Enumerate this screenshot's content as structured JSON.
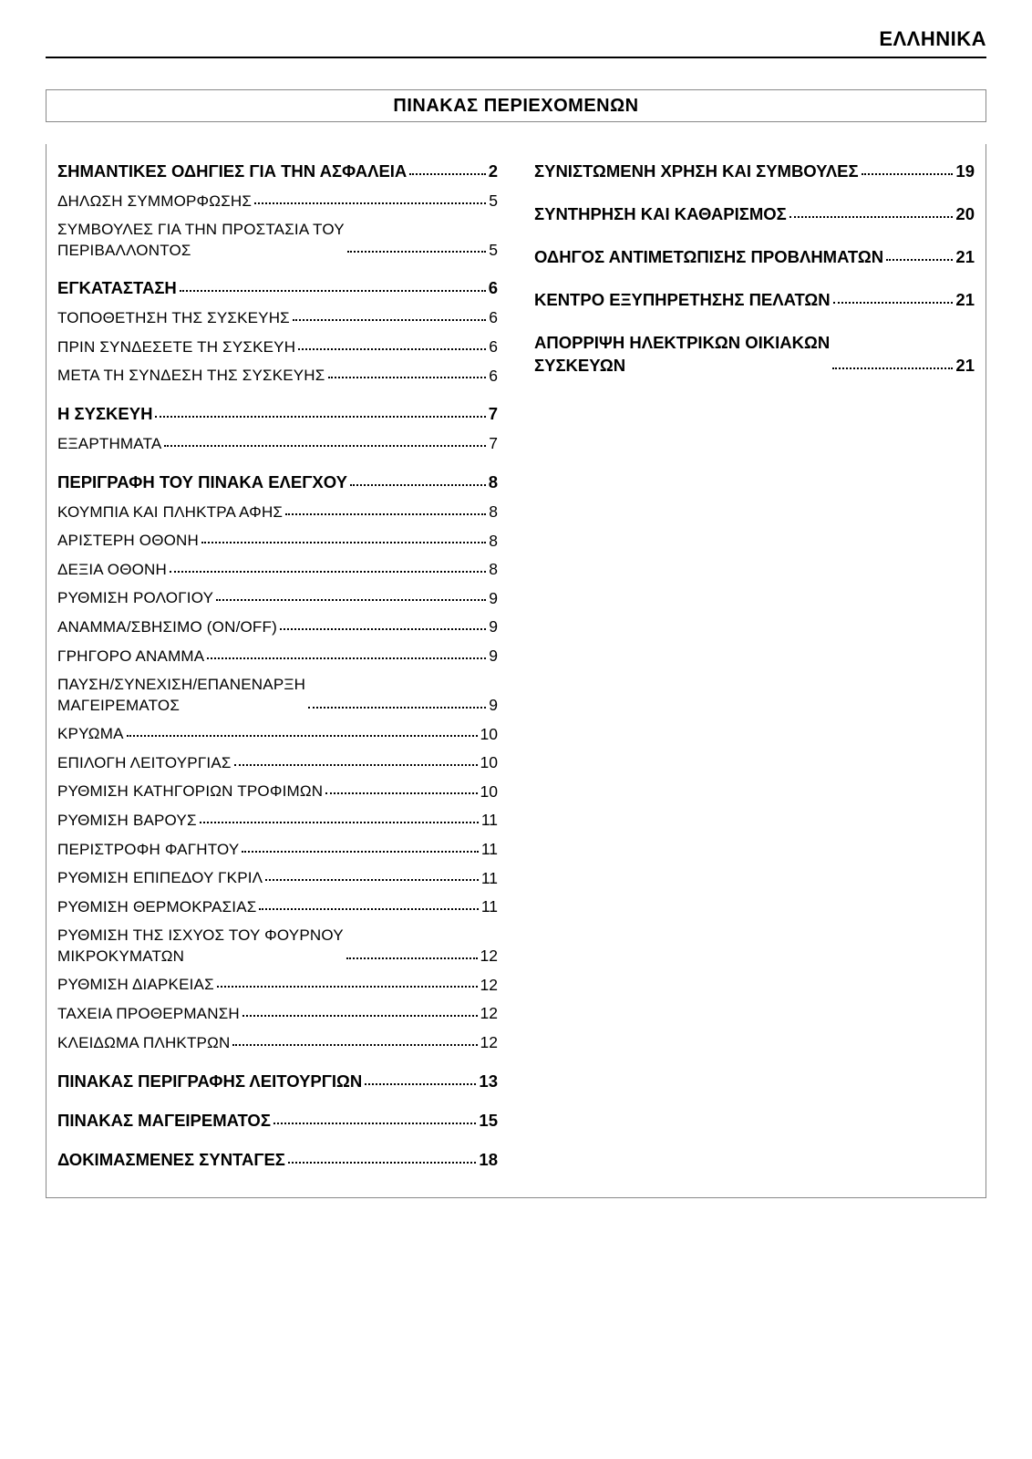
{
  "header": {
    "language": "ΕΛΛΗΝΙΚΑ"
  },
  "toc": {
    "title": "ΠΙΝΑΚΑΣ ΠΕΡΙΕΧΟΜΕΝΩΝ",
    "left": [
      {
        "label": "ΣΗΜΑΝΤΙΚΕΣ ΟΔΗΓΙΕΣ ΓΙΑ ΤΗΝ ΑΣΦΑΛΕΙΑ",
        "page": "2",
        "bold": true
      },
      {
        "label": "ΔΗΛΩΣΗ ΣΥΜΜΟΡΦΩΣΗΣ",
        "page": "5",
        "bold": false
      },
      {
        "label": "ΣΥΜΒΟΥΛΕΣ ΓΙΑ ΤΗΝ ΠΡΟΣΤΑΣΙΑ ΤΟΥ\nΠΕΡΙΒΑΛΛΟΝΤΟΣ",
        "page": "5",
        "bold": false
      },
      {
        "label": "ΕΓΚΑΤΑΣΤΑΣΗ",
        "page": "6",
        "bold": true
      },
      {
        "label": "ΤΟΠΟΘΕΤΗΣΗ ΤΗΣ ΣΥΣΚΕΥΗΣ",
        "page": "6",
        "bold": false
      },
      {
        "label": "ΠΡΙΝ ΣΥΝΔΕΣΕΤΕ ΤΗ ΣΥΣΚΕΥΗ",
        "page": "6",
        "bold": false
      },
      {
        "label": "ΜΕΤΑ ΤΗ ΣΥΝΔΕΣΗ ΤΗΣ ΣΥΣΚΕΥΗΣ",
        "page": "6",
        "bold": false
      },
      {
        "label": "Η ΣΥΣΚΕΥΗ",
        "page": "7",
        "bold": true
      },
      {
        "label": "ΕΞΑΡΤΗΜΑΤΑ",
        "page": "7",
        "bold": false
      },
      {
        "label": "ΠΕΡΙΓΡΑΦΗ ΤΟΥ ΠΙΝΑΚΑ ΕΛΕΓΧΟΥ",
        "page": "8",
        "bold": true
      },
      {
        "label": "ΚΟΥΜΠΙΑ ΚΑΙ ΠΛΗΚΤΡΑ ΑΦΗΣ",
        "page": "8",
        "bold": false
      },
      {
        "label": "ΑΡΙΣΤΕΡΗ ΟΘΟΝΗ",
        "page": "8",
        "bold": false
      },
      {
        "label": "ΔΕΞΙΑ ΟΘΟΝΗ",
        "page": "8",
        "bold": false
      },
      {
        "label": "ΡΥΘΜΙΣΗ ΡΟΛΟΓΙΟΥ",
        "page": "9",
        "bold": false
      },
      {
        "label": "ΑΝΑΜΜΑ/ΣΒΗΣΙΜΟ (ON/OFF)",
        "page": "9",
        "bold": false
      },
      {
        "label": "ΓΡΗΓΟΡΟ ΑΝΑΜΜΑ",
        "page": "9",
        "bold": false
      },
      {
        "label": "ΠΑΥΣΗ/ΣΥΝΕΧΙΣΗ/ΕΠΑΝΕΝΑΡΞΗ\nΜΑΓΕΙΡΕΜΑΤΟΣ",
        "page": "9",
        "bold": false
      },
      {
        "label": "ΚΡΥΩΜΑ",
        "page": "10",
        "bold": false
      },
      {
        "label": "ΕΠΙΛΟΓΗ ΛΕΙΤΟΥΡΓΙΑΣ",
        "page": "10",
        "bold": false
      },
      {
        "label": "ΡΥΘΜΙΣΗ ΚΑΤΗΓΟΡΙΩΝ ΤΡΟΦΙΜΩΝ",
        "page": "10",
        "bold": false
      },
      {
        "label": "ΡΥΘΜΙΣΗ ΒΑΡΟΥΣ",
        "page": "11",
        "bold": false
      },
      {
        "label": "ΠΕΡΙΣΤΡΟΦΗ ΦΑΓΗΤΟΥ",
        "page": "11",
        "bold": false
      },
      {
        "label": "ΡΥΘΜΙΣΗ ΕΠΙΠΕΔΟΥ ΓΚΡΙΛ",
        "page": "11",
        "bold": false
      },
      {
        "label": "ΡΥΘΜΙΣΗ ΘΕΡΜΟΚΡΑΣΙΑΣ",
        "page": "11",
        "bold": false
      },
      {
        "label": "ΡΥΘΜΙΣΗ ΤΗΣ ΙΣΧΥΟΣ ΤΟΥ ΦΟΥΡΝΟΥ\nΜΙΚΡΟΚΥΜΑΤΩΝ",
        "page": "12",
        "bold": false
      },
      {
        "label": "ΡΥΘΜΙΣΗ ΔΙΑΡΚΕΙΑΣ",
        "page": "12",
        "bold": false
      },
      {
        "label": "ΤΑΧΕΙΑ ΠΡΟΘΕΡΜΑΝΣΗ",
        "page": "12",
        "bold": false
      },
      {
        "label": "ΚΛΕΙΔΩΜΑ ΠΛΗΚΤΡΩΝ",
        "page": "12",
        "bold": false
      },
      {
        "label": "ΠΙΝΑΚΑΣ ΠΕΡΙΓΡΑΦΗΣ ΛΕΙΤΟΥΡΓΙΩΝ",
        "page": "13",
        "bold": true
      },
      {
        "label": "ΠΙΝΑΚΑΣ ΜΑΓΕΙΡΕΜΑΤΟΣ",
        "page": "15",
        "bold": true
      },
      {
        "label": "ΔΟΚΙΜΑΣΜΕΝΕΣ ΣΥΝΤΑΓΕΣ",
        "page": "18",
        "bold": true
      }
    ],
    "right": [
      {
        "label": "ΣΥΝΙΣΤΩΜΕΝΗ ΧΡΗΣΗ ΚΑΙ ΣΥΜΒΟΥΛΕΣ",
        "page": "19",
        "bold": true
      },
      {
        "label": "ΣΥΝΤΗΡΗΣΗ ΚΑΙ ΚΑΘΑΡΙΣΜΟΣ",
        "page": "20",
        "bold": true
      },
      {
        "label": "ΟΔΗΓΟΣ ΑΝΤΙΜΕΤΩΠΙΣΗΣ ΠΡΟΒΛΗΜΑΤΩΝ",
        "page": "21",
        "bold": true
      },
      {
        "label": "ΚΕΝΤΡΟ ΕΞΥΠΗΡΕΤΗΣΗΣ ΠΕΛΑΤΩΝ",
        "page": "21",
        "bold": true
      },
      {
        "label": "ΑΠΟΡΡΙΨΗ ΗΛΕΚΤΡΙΚΩΝ ΟΙΚΙΑΚΩΝ\nΣΥΣΚΕΥΩΝ",
        "page": "21",
        "bold": true
      }
    ]
  }
}
